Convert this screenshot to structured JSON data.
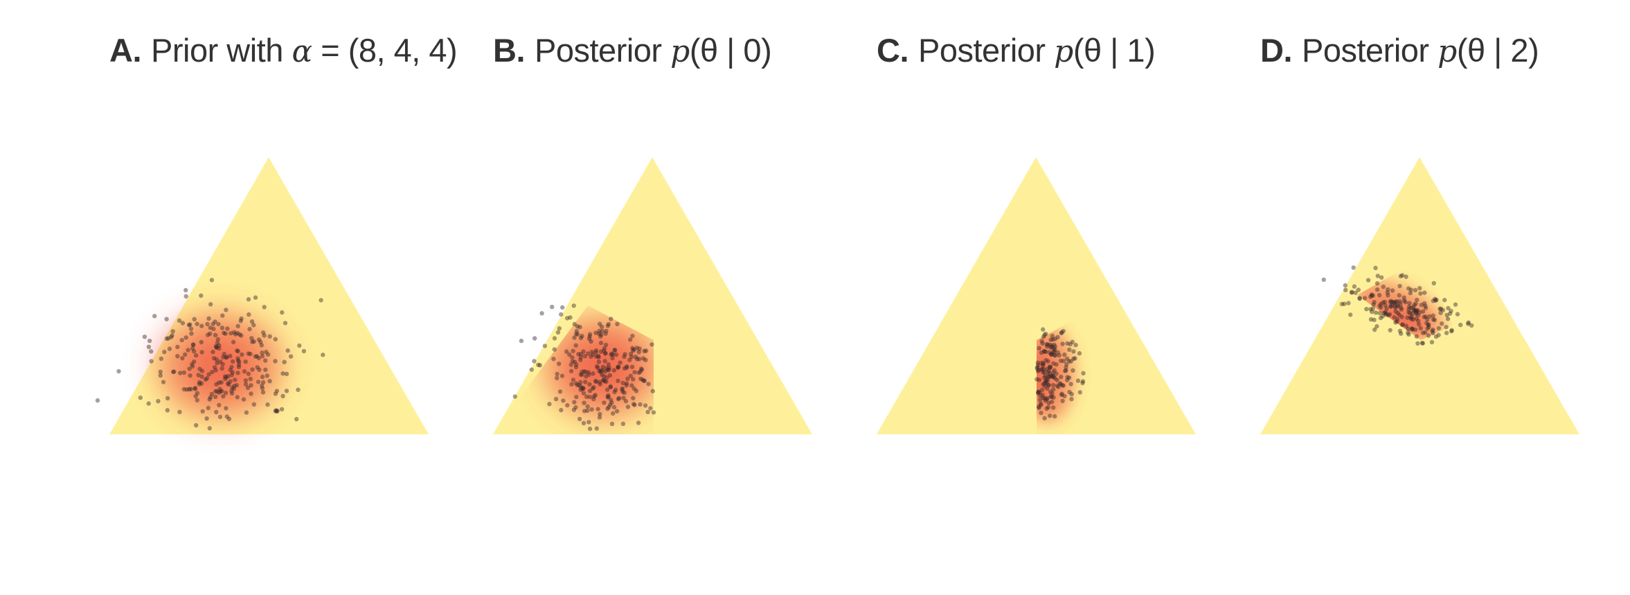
{
  "colors": {
    "triangle_fill": "#FEF09A",
    "density_color": "#EF4B3C",
    "sample_point_color": "#3a2a2a",
    "title_color": "#333333"
  },
  "panels": [
    {
      "letter": "A.",
      "text_before": "Prior with ",
      "symbol": "α",
      "text_after": " = (8, 4, 4)",
      "region": "full-triangle",
      "shows_density": true
    },
    {
      "letter": "B.",
      "text_before": "Posterior ",
      "symbol": "p",
      "text_after": "(θ | 0)",
      "region": "left-region",
      "shows_density": true
    },
    {
      "letter": "C.",
      "text_before": "Posterior ",
      "symbol": "p",
      "text_after": "(θ | 1)",
      "region": "center-region",
      "shows_density": true
    },
    {
      "letter": "D.",
      "text_before": "Posterior ",
      "symbol": "p",
      "text_after": "(θ | 2)",
      "region": "upper-region",
      "shows_density": true
    }
  ]
}
